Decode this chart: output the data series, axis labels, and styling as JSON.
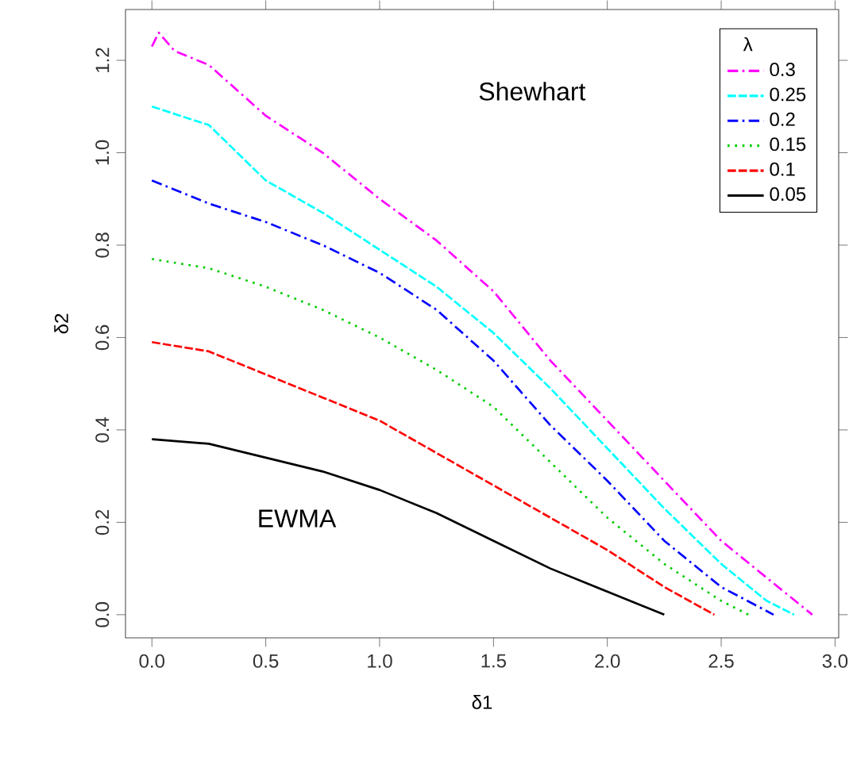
{
  "chart_data": {
    "type": "line",
    "xlabel": "δ1",
    "ylabel": "δ2",
    "legend_title": "λ",
    "legend": "top right",
    "grid": false,
    "xlim": [
      -0.116,
      3.016
    ],
    "ylim": [
      -0.05,
      1.31
    ],
    "xticks": [
      {
        "value": 0,
        "label": "0.0"
      },
      {
        "value": 0.5,
        "label": "0.5"
      },
      {
        "value": 1,
        "label": "1.0"
      },
      {
        "value": 1.5,
        "label": "1.5"
      },
      {
        "value": 2,
        "label": "2.0"
      },
      {
        "value": 2.5,
        "label": "2.5"
      },
      {
        "value": 3,
        "label": "3.0"
      }
    ],
    "yticks": [
      {
        "value": 0,
        "label": "0.0"
      },
      {
        "value": 0.2,
        "label": "0.2"
      },
      {
        "value": 0.4,
        "label": "0.4"
      },
      {
        "value": 0.6,
        "label": "0.6"
      },
      {
        "value": 0.8,
        "label": "0.8"
      },
      {
        "value": 1,
        "label": "1.0"
      },
      {
        "value": 1.2,
        "label": "1.2"
      }
    ],
    "annotations": [
      "Shewhart",
      "EWMA"
    ],
    "series": [
      {
        "name": "0.3",
        "color": "#ff00ff",
        "line_style": "dashdot",
        "x": [
          0,
          0.03,
          0.1,
          0.25,
          0.5,
          0.75,
          1.0,
          1.25,
          1.5,
          1.75,
          2.0,
          2.25,
          2.5,
          2.75,
          2.9
        ],
        "values": [
          1.23,
          1.26,
          1.22,
          1.19,
          1.08,
          1.0,
          0.9,
          0.81,
          0.7,
          0.55,
          0.42,
          0.29,
          0.16,
          0.06,
          0.0
        ]
      },
      {
        "name": "0.25",
        "color": "#00ffff",
        "line_style": "dashed",
        "x": [
          0,
          0.25,
          0.5,
          0.75,
          1.0,
          1.25,
          1.5,
          1.75,
          2.0,
          2.25,
          2.5,
          2.7,
          2.82
        ],
        "values": [
          1.1,
          1.06,
          0.94,
          0.87,
          0.79,
          0.71,
          0.61,
          0.49,
          0.36,
          0.23,
          0.11,
          0.03,
          0.0
        ]
      },
      {
        "name": "0.2",
        "color": "#0000ff",
        "line_style": "dashdot",
        "x": [
          0,
          0.25,
          0.5,
          0.75,
          1.0,
          1.25,
          1.5,
          1.75,
          2.0,
          2.25,
          2.5,
          2.73
        ],
        "values": [
          0.94,
          0.89,
          0.85,
          0.8,
          0.74,
          0.66,
          0.55,
          0.41,
          0.29,
          0.16,
          0.06,
          0.0
        ]
      },
      {
        "name": "0.15",
        "color": "#00cd00",
        "line_style": "dotted",
        "x": [
          0,
          0.25,
          0.5,
          0.75,
          1.0,
          1.25,
          1.5,
          1.75,
          2.0,
          2.25,
          2.5,
          2.62
        ],
        "values": [
          0.77,
          0.75,
          0.71,
          0.66,
          0.6,
          0.53,
          0.45,
          0.33,
          0.21,
          0.11,
          0.03,
          0.0
        ]
      },
      {
        "name": "0.1",
        "color": "#ff0000",
        "line_style": "dashed",
        "x": [
          0,
          0.25,
          0.5,
          0.75,
          1.0,
          1.25,
          1.5,
          1.75,
          2.0,
          2.25,
          2.47
        ],
        "values": [
          0.59,
          0.57,
          0.52,
          0.47,
          0.42,
          0.35,
          0.28,
          0.21,
          0.14,
          0.06,
          0.0
        ]
      },
      {
        "name": "0.05",
        "color": "#000000",
        "line_style": "solid",
        "x": [
          0,
          0.25,
          0.5,
          0.75,
          1.0,
          1.25,
          1.5,
          1.75,
          2.0,
          2.25
        ],
        "values": [
          0.38,
          0.37,
          0.34,
          0.31,
          0.27,
          0.22,
          0.16,
          0.1,
          0.05,
          0.0
        ]
      }
    ]
  }
}
